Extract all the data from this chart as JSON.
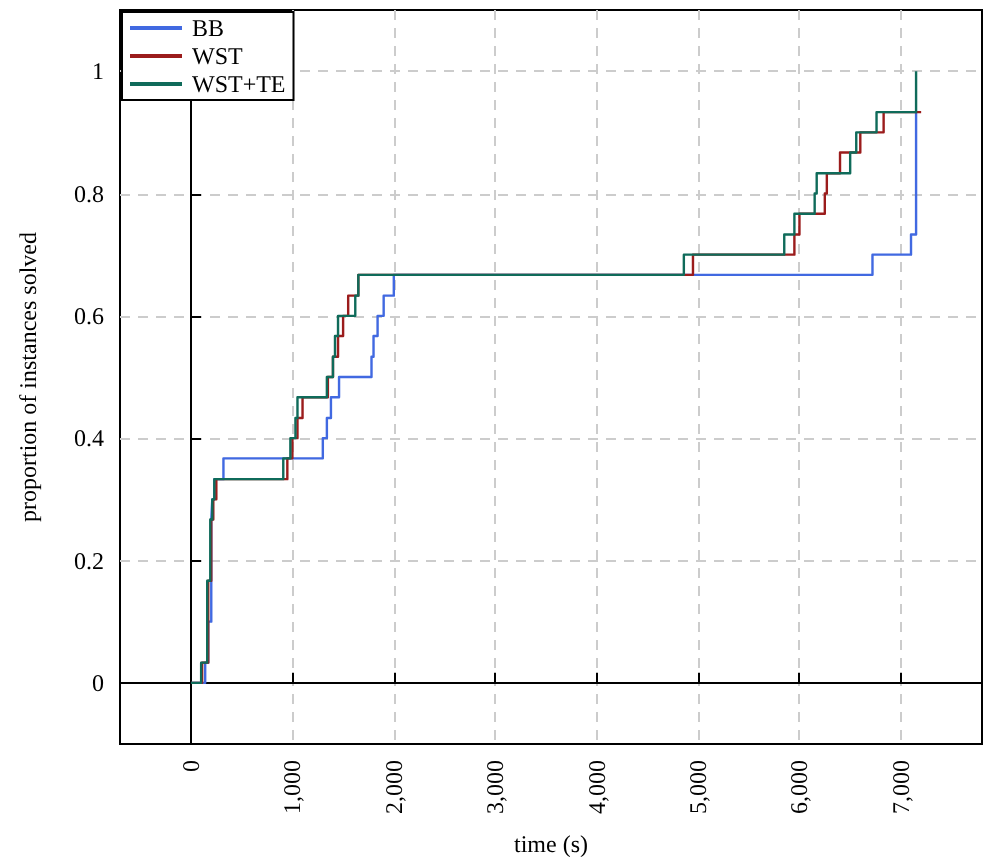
{
  "chart_data": {
    "type": "step",
    "xlabel": "time (s)",
    "ylabel": "proportion of instances solved",
    "xlim": [
      -700,
      7800
    ],
    "ylim": [
      -0.1,
      1.1
    ],
    "xticks": [
      {
        "value": 0,
        "label": "0"
      },
      {
        "value": 1000,
        "label": "1,000"
      },
      {
        "value": 2000,
        "label": "2,000"
      },
      {
        "value": 3000,
        "label": "3,000"
      },
      {
        "value": 4000,
        "label": "4,000"
      },
      {
        "value": 5000,
        "label": "5,000"
      },
      {
        "value": 6000,
        "label": "6,000"
      },
      {
        "value": 7000,
        "label": "7,000"
      }
    ],
    "yticks": [
      0,
      0.2,
      0.4,
      0.6,
      0.8,
      1
    ],
    "grid": true,
    "legend": "top left",
    "marker": "none",
    "line_style": "solid",
    "series": [
      {
        "name": "BB",
        "color": "#4169e1",
        "x": [
          0,
          140,
          170,
          200,
          210,
          230,
          320,
          1300,
          1340,
          1380,
          1460,
          1780,
          1800,
          1840,
          1900,
          2000,
          6720,
          7100,
          7150
        ],
        "values": [
          0,
          0.033,
          0.1,
          0.267,
          0.3,
          0.333,
          0.367,
          0.4,
          0.433,
          0.467,
          0.5,
          0.533,
          0.567,
          0.6,
          0.633,
          0.667,
          0.7,
          0.733,
          0.933
        ]
      },
      {
        "name": "WST",
        "color": "#9b1c1c",
        "x": [
          0,
          110,
          170,
          200,
          220,
          250,
          950,
          1000,
          1050,
          1100,
          1350,
          1400,
          1450,
          1500,
          1550,
          1650,
          4950,
          5950,
          6000,
          6250,
          6270,
          6400,
          6600,
          6830,
          7200
        ],
        "values": [
          0,
          0.033,
          0.167,
          0.267,
          0.3,
          0.333,
          0.367,
          0.4,
          0.433,
          0.467,
          0.5,
          0.533,
          0.567,
          0.6,
          0.633,
          0.667,
          0.7,
          0.733,
          0.767,
          0.8,
          0.833,
          0.867,
          0.9,
          0.933,
          0.933
        ]
      },
      {
        "name": "WST+TE",
        "color": "#0f6b5a",
        "x": [
          0,
          100,
          160,
          190,
          210,
          230,
          910,
          980,
          1030,
          1050,
          1340,
          1400,
          1420,
          1450,
          1560,
          1620,
          1650,
          4860,
          5850,
          5950,
          6150,
          6170,
          6500,
          6560,
          6760,
          7150
        ],
        "values": [
          0,
          0.033,
          0.167,
          0.267,
          0.3,
          0.333,
          0.367,
          0.4,
          0.433,
          0.467,
          0.5,
          0.533,
          0.567,
          0.6,
          0.6,
          0.633,
          0.667,
          0.7,
          0.733,
          0.767,
          0.8,
          0.833,
          0.867,
          0.9,
          0.933,
          1
        ]
      }
    ]
  }
}
